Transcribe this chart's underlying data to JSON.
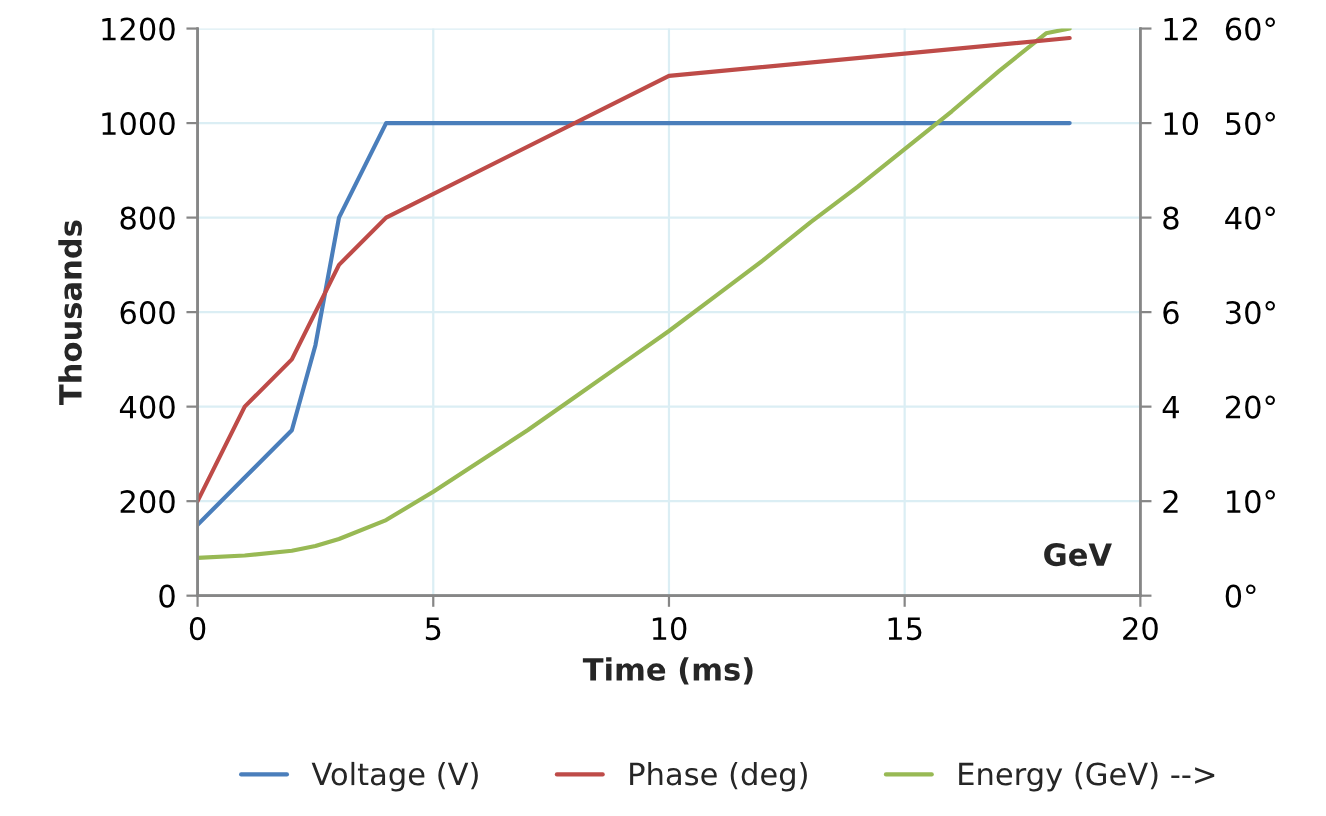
{
  "chart_data": {
    "type": "line",
    "xlabel": "Time (ms)",
    "ylabel": "Thousands",
    "y2label": "GeV",
    "xlim": [
      0,
      20
    ],
    "xticks": [
      0,
      5,
      10,
      15,
      20
    ],
    "ylim": [
      0,
      1200
    ],
    "yticks": [
      0,
      200,
      400,
      600,
      800,
      1000,
      1200
    ],
    "y2lim": [
      0,
      12
    ],
    "y2ticks": [
      {
        "value": 0,
        "label": null
      },
      2,
      4,
      6,
      8,
      10,
      12
    ],
    "y3lim": [
      0,
      60
    ],
    "y3ticks": [
      {
        "value": 0,
        "label": "0°"
      },
      {
        "value": 10,
        "label": "10°"
      },
      {
        "value": 20,
        "label": "20°"
      },
      {
        "value": 30,
        "label": "30°"
      },
      {
        "value": 40,
        "label": "40°"
      },
      {
        "value": 50,
        "label": "50°"
      },
      {
        "value": 60,
        "label": "60°"
      }
    ],
    "grid": true,
    "legend": "bottom",
    "marker": "none",
    "line_style": "solid",
    "series": [
      {
        "name": "Voltage (V)",
        "color": "#4a7ebb",
        "x": [
          0,
          1,
          2,
          2.5,
          3,
          4,
          18.5
        ],
        "values": [
          150,
          250,
          350,
          530,
          800,
          1000,
          1000
        ]
      },
      {
        "name": "Phase (deg)",
        "color": "#be4b48",
        "axis": "y3",
        "x": [
          0,
          1,
          2,
          3,
          4,
          10,
          18.5
        ],
        "values": [
          10,
          20,
          25,
          35,
          40,
          55,
          59
        ]
      },
      {
        "name": "Energy (GeV) -->",
        "color": "#98b954",
        "axis": "y2",
        "x": [
          0,
          1,
          2,
          2.5,
          3,
          4,
          5,
          6,
          7,
          8,
          9,
          10,
          11,
          12,
          13,
          14,
          15,
          16,
          17,
          18,
          18.5
        ],
        "values": [
          0.8,
          0.85,
          0.95,
          1.05,
          1.2,
          1.6,
          2.2,
          2.85,
          3.5,
          4.2,
          4.9,
          5.6,
          6.35,
          7.1,
          7.9,
          8.65,
          9.45,
          10.25,
          11.1,
          11.9,
          12
        ]
      }
    ]
  }
}
